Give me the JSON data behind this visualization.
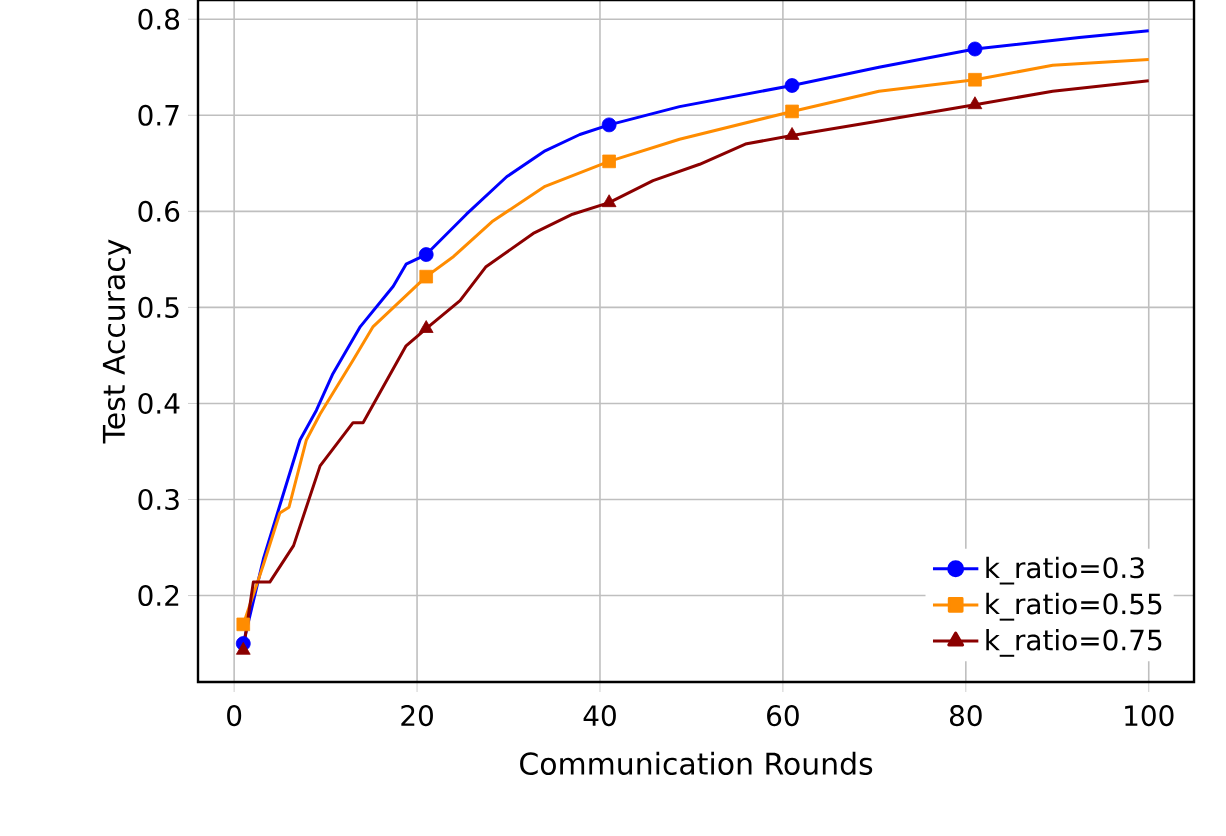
{
  "chart_data": {
    "type": "line",
    "xlabel": "Communication Rounds",
    "ylabel": "Test Accuracy",
    "xlim": [
      -3.95,
      104.95
    ],
    "ylim": [
      0.11,
      0.82
    ],
    "xticks": [
      0,
      20,
      40,
      60,
      80,
      100
    ],
    "yticks": [
      {
        "value": 0.2,
        "label": "0.2"
      },
      {
        "value": 0.3,
        "label": "0.3"
      },
      {
        "value": 0.4,
        "label": "0.4"
      },
      {
        "value": 0.5,
        "label": "0.5"
      },
      {
        "value": 0.6,
        "label": "0.6"
      },
      {
        "value": 0.7,
        "label": "0.7"
      },
      {
        "value": 0.8,
        "label": "0.8"
      }
    ],
    "grid": true,
    "legend": "bottom right",
    "line_style": "solid",
    "series": [
      {
        "name": "k_ratio=0.3",
        "color": "#0000ff",
        "marker": "none",
        "x": [
          1,
          3.2,
          5,
          7.2,
          9,
          10.8,
          13.8,
          17.4,
          18.8,
          21,
          25.4,
          29.8,
          34,
          37.8,
          41,
          48.7,
          61,
          70.5,
          81,
          92.4,
          100
        ],
        "values": [
          0.15,
          0.238,
          0.294,
          0.362,
          0.393,
          0.431,
          0.48,
          0.522,
          0.545,
          0.555,
          0.597,
          0.636,
          0.663,
          0.68,
          0.69,
          0.709,
          0.731,
          0.75,
          0.769,
          0.781,
          0.788
        ]
      },
      {
        "type": "scatter",
        "color": "#0000ff",
        "marker": "circle",
        "x": [
          1,
          21,
          41,
          61,
          81
        ],
        "values": [
          0.15,
          0.555,
          0.69,
          0.731,
          0.769
        ]
      },
      {
        "name": "k_ratio=0.55",
        "color": "#ff8c00",
        "marker": "none",
        "x": [
          1,
          3.2,
          5,
          6,
          7.9,
          9.4,
          13,
          15.2,
          21,
          24,
          28.3,
          34,
          41,
          48.7,
          61,
          70.5,
          81,
          89.5,
          100
        ],
        "values": [
          0.17,
          0.232,
          0.286,
          0.292,
          0.362,
          0.389,
          0.445,
          0.48,
          0.532,
          0.553,
          0.59,
          0.626,
          0.652,
          0.675,
          0.704,
          0.725,
          0.737,
          0.752,
          0.758
        ]
      },
      {
        "type": "scatter",
        "color": "#ff8c00",
        "marker": "square",
        "x": [
          1,
          21,
          41,
          61,
          81
        ],
        "values": [
          0.17,
          0.532,
          0.652,
          0.704,
          0.737
        ]
      },
      {
        "name": "k_ratio=0.75",
        "color": "#8b0000",
        "marker": "none",
        "x": [
          1,
          2.1,
          3.9,
          6.5,
          9.4,
          13,
          14.1,
          18.8,
          21,
          24.7,
          27.5,
          32.7,
          37,
          41,
          45.8,
          50.9,
          55.9,
          61,
          70.5,
          81,
          89.5,
          100
        ],
        "values": [
          0.143,
          0.214,
          0.214,
          0.252,
          0.335,
          0.38,
          0.38,
          0.46,
          0.478,
          0.507,
          0.542,
          0.577,
          0.597,
          0.609,
          0.632,
          0.649,
          0.67,
          0.679,
          0.694,
          0.711,
          0.725,
          0.736
        ]
      },
      {
        "type": "scatter",
        "color": "#8b0000",
        "marker": "triangle",
        "x": [
          1,
          21,
          41,
          61,
          81
        ],
        "values": [
          0.143,
          0.478,
          0.609,
          0.679,
          0.711
        ]
      }
    ]
  }
}
